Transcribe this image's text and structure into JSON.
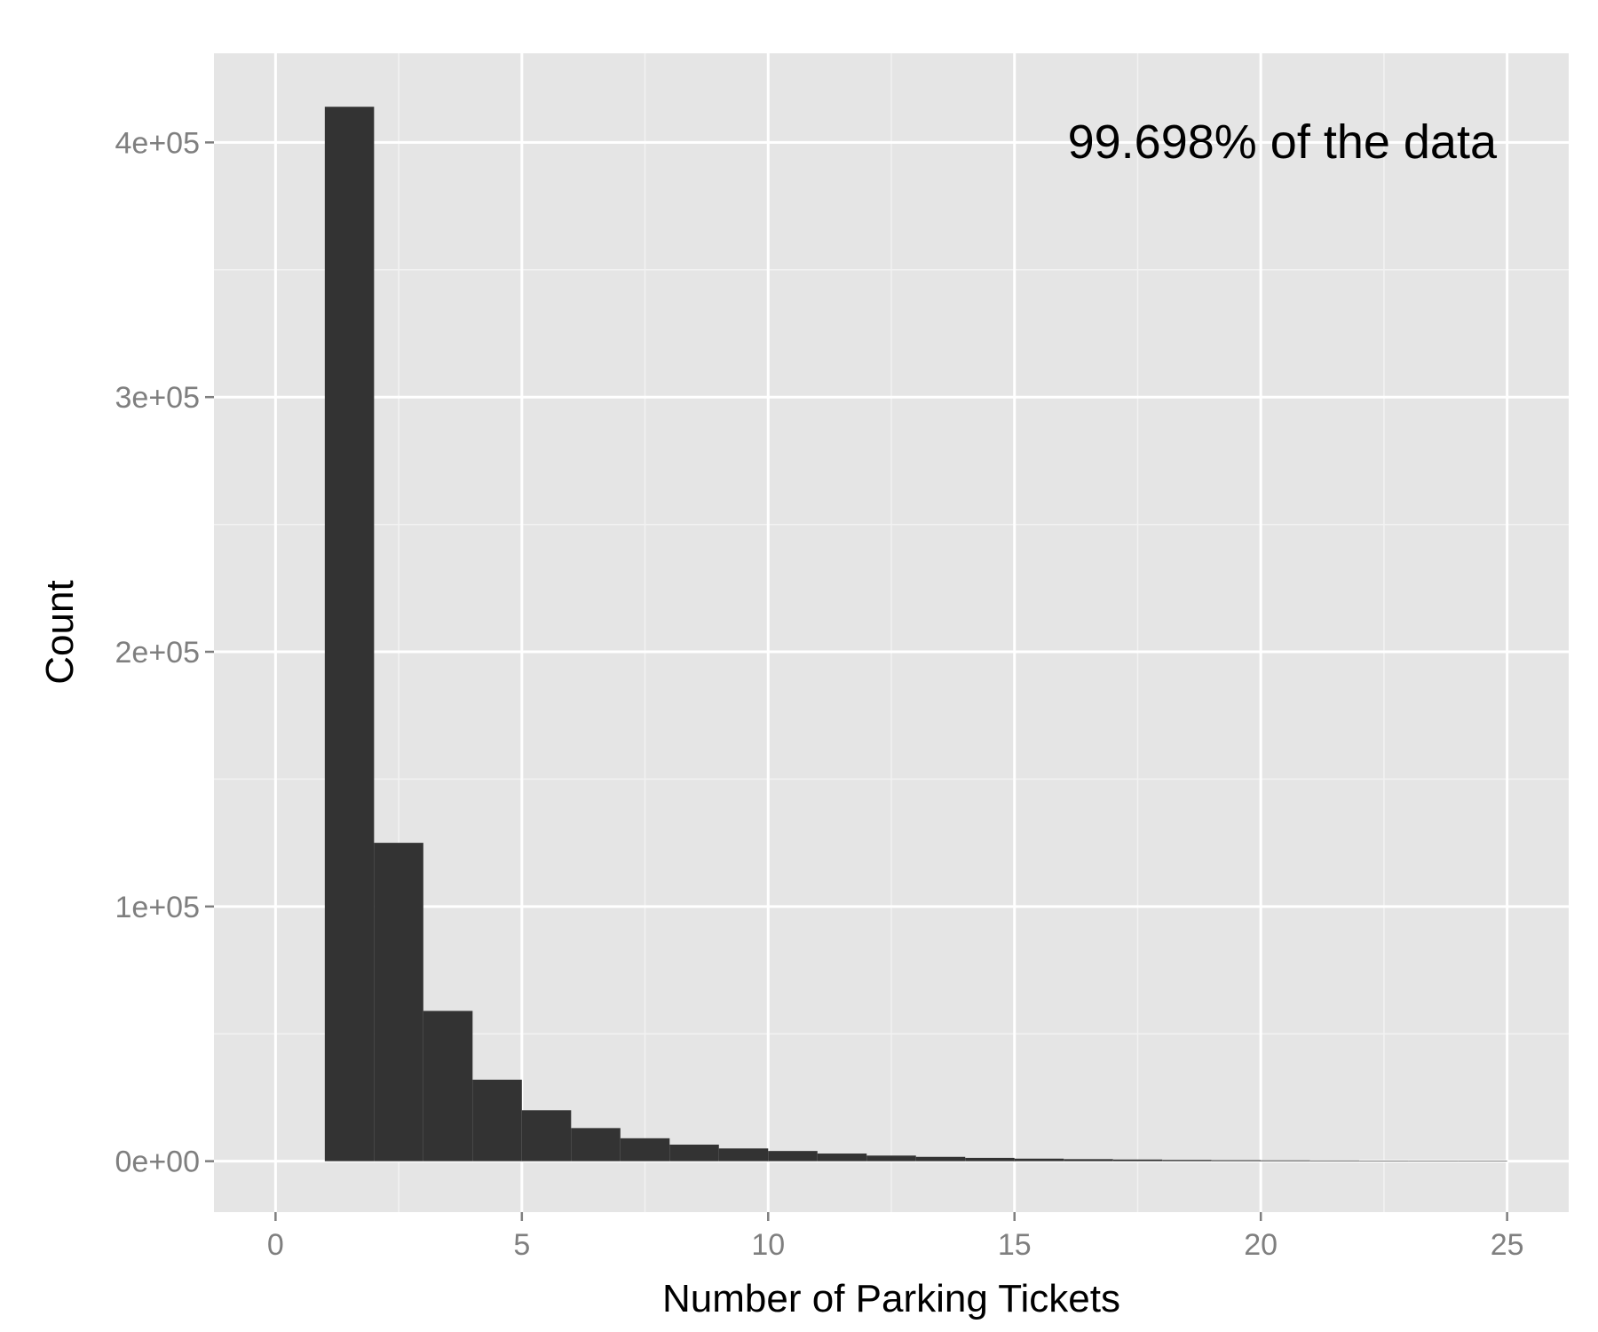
{
  "chart_data": {
    "type": "bar",
    "subtype": "histogram",
    "title": "",
    "xlabel": "Number of Parking Tickets",
    "ylabel": "Count",
    "xlim": [
      -1.25,
      26.25
    ],
    "ylim": [
      -20000,
      435000
    ],
    "x_ticks": [
      0,
      5,
      10,
      15,
      20,
      25
    ],
    "x_tick_labels": [
      "0",
      "5",
      "10",
      "15",
      "20",
      "25"
    ],
    "y_ticks": [
      0,
      100000,
      200000,
      300000,
      400000
    ],
    "y_tick_labels": [
      "0e+00",
      "1e+05",
      "2e+05",
      "3e+05",
      "4e+05"
    ],
    "bin_width": 1,
    "bin_starts": [
      1,
      2,
      3,
      4,
      5,
      6,
      7,
      8,
      9,
      10,
      11,
      12,
      13,
      14,
      15,
      16,
      17,
      18,
      19,
      20,
      21,
      22,
      23,
      24
    ],
    "values": [
      414000,
      125000,
      59000,
      32000,
      20000,
      13000,
      9000,
      6500,
      5000,
      4000,
      3000,
      2200,
      1700,
      1300,
      1000,
      800,
      650,
      500,
      400,
      330,
      270,
      220,
      180,
      150
    ],
    "annotation": "99.698% of the data",
    "grid": true,
    "colors": {
      "panel_background": "#e5e5e5",
      "grid_major": "#ffffff",
      "grid_minor": "#f2f2f2",
      "bar_fill": "#333333",
      "tick_label": "#7f7f7f",
      "axis_title": "#000000"
    }
  }
}
